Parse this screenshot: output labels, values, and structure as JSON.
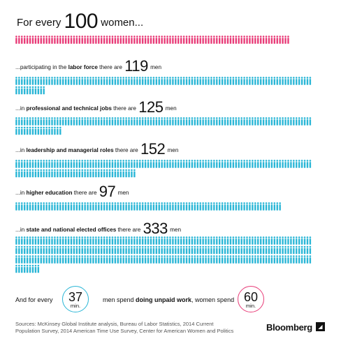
{
  "headline": {
    "prefix": "For every",
    "number": "100",
    "suffix": "women..."
  },
  "colors": {
    "women": "#e83c78",
    "men": "#2ab6d6",
    "min_37": "#2ab6d6",
    "min_60": "#e83c78"
  },
  "chart_data": {
    "type": "pictograph",
    "base": {
      "group": "women",
      "count": 100
    },
    "rows": [
      {
        "prefix": "...participating in the",
        "bold": "labor force",
        "middle": "there are",
        "value": 119,
        "unit": "men"
      },
      {
        "prefix": "...in",
        "bold": "professional and technical jobs",
        "middle": "there are",
        "value": 125,
        "unit": "men"
      },
      {
        "prefix": "...in",
        "bold": "leadership and managerial roles",
        "middle": "there are",
        "value": 152,
        "unit": "men"
      },
      {
        "prefix": "...in",
        "bold": "higher education",
        "middle": "there are",
        "value": 97,
        "unit": "men"
      },
      {
        "prefix": "...in",
        "bold": "state and national elected offices",
        "middle": "there are",
        "value": 333,
        "unit": "men"
      }
    ],
    "unpaid_work": {
      "men_minutes": 37,
      "women_minutes": 60,
      "unit": "min."
    }
  },
  "footer": {
    "lead": "And for every",
    "mid_prefix": "men spend",
    "mid_bold": "doing unpaid work",
    "mid_suffix": ", women spend"
  },
  "sources": {
    "line1": "Sources:  McKinsey Global Institute analysis, Bureau of Labor Statistics, 2014 Current",
    "line2": "Population Survey, 2014 American Time Use Survey, Center for American Women and Politics"
  },
  "brand": "Bloomberg"
}
